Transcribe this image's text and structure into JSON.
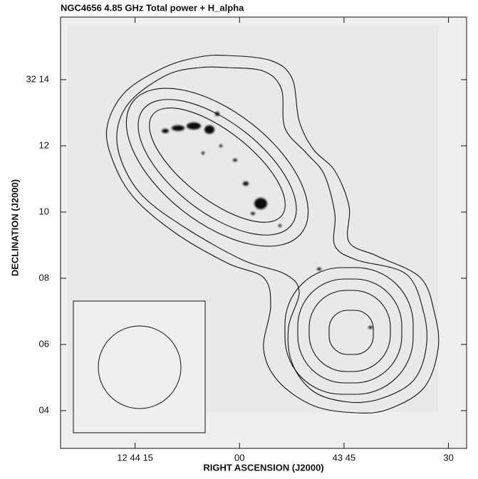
{
  "chart_data": {
    "type": "contour",
    "title": "NGC4656  4.85 GHz  Total power + H_alpha",
    "x_label": "RIGHT ASCENSION (J2000)",
    "y_label": "DECLINATION (J2000)",
    "xlim": [
      2665.7,
      2607.4
    ],
    "xticks": [
      {
        "value": 2655,
        "label": "12 44 15"
      },
      {
        "value": 2640,
        "label": "00"
      },
      {
        "value": 2625,
        "label": "43 45"
      },
      {
        "value": 2610,
        "label": "30"
      }
    ],
    "ylim": [
      2.86,
      15.89
    ],
    "yticks": [
      {
        "value": 14,
        "label": "32 14"
      },
      12,
      10,
      {
        "value": 8,
        "label": "08"
      },
      {
        "value": 6,
        "label": "06"
      },
      {
        "value": 4,
        "label": "04"
      }
    ]
  }
}
